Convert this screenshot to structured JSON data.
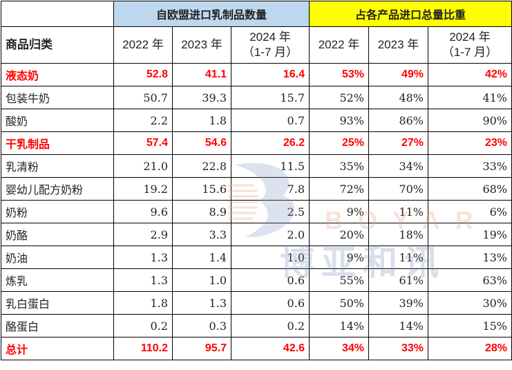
{
  "headers": {
    "group_eu": "自欧盟进口乳制品数量",
    "group_share": "占各产品进口总量比重",
    "category": "商品归类",
    "y2022": "2022 年",
    "y2023": "2023 年",
    "y2024_line1": "2024 年",
    "y2024_line2": "（1-7 月）"
  },
  "rows": [
    {
      "name": "液态奶",
      "v2022": "52.8",
      "v2023": "41.1",
      "v2024": "16.4",
      "s2022": "53%",
      "s2023": "49%",
      "s2024": "42%",
      "highlight": true
    },
    {
      "name": "包装牛奶",
      "v2022": "50.7",
      "v2023": "39.3",
      "v2024": "15.7",
      "s2022": "52%",
      "s2023": "48%",
      "s2024": "41%",
      "highlight": false
    },
    {
      "name": "酸奶",
      "v2022": "2.2",
      "v2023": "1.8",
      "v2024": "0.7",
      "s2022": "93%",
      "s2023": "86%",
      "s2024": "90%",
      "highlight": false
    },
    {
      "name": "干乳制品",
      "v2022": "57.4",
      "v2023": "54.6",
      "v2024": "26.2",
      "s2022": "25%",
      "s2023": "27%",
      "s2024": "23%",
      "highlight": true
    },
    {
      "name": "乳清粉",
      "v2022": "21.0",
      "v2023": "22.8",
      "v2024": "11.5",
      "s2022": "35%",
      "s2023": "34%",
      "s2024": "33%",
      "highlight": false
    },
    {
      "name": "婴幼儿配方奶粉",
      "v2022": "19.2",
      "v2023": "15.6",
      "v2024": "7.8",
      "s2022": "72%",
      "s2023": "70%",
      "s2024": "68%",
      "highlight": false
    },
    {
      "name": "奶粉",
      "v2022": "9.6",
      "v2023": "8.9",
      "v2024": "2.5",
      "s2022": "9%",
      "s2023": "11%",
      "s2024": "6%",
      "highlight": false
    },
    {
      "name": "奶酪",
      "v2022": "2.9",
      "v2023": "3.3",
      "v2024": "2.0",
      "s2022": "20%",
      "s2023": "18%",
      "s2024": "19%",
      "highlight": false
    },
    {
      "name": "奶油",
      "v2022": "1.3",
      "v2023": "1.4",
      "v2024": "1.0",
      "s2022": "9%",
      "s2023": "11%",
      "s2024": "13%",
      "highlight": false
    },
    {
      "name": "炼乳",
      "v2022": "1.3",
      "v2023": "1.0",
      "v2024": "0.6",
      "s2022": "55%",
      "s2023": "61%",
      "s2024": "63%",
      "highlight": false
    },
    {
      "name": "乳白蛋白",
      "v2022": "1.8",
      "v2023": "1.3",
      "v2024": "0.6",
      "s2022": "50%",
      "s2023": "39%",
      "s2024": "30%",
      "highlight": false
    },
    {
      "name": "酪蛋白",
      "v2022": "0.2",
      "v2023": "0.3",
      "v2024": "0.2",
      "s2022": "14%",
      "s2023": "14%",
      "s2024": "15%",
      "highlight": false
    },
    {
      "name": "总计",
      "v2022": "110.2",
      "v2023": "95.7",
      "v2024": "42.6",
      "s2022": "34%",
      "s2023": "33%",
      "s2024": "28%",
      "highlight": true
    }
  ],
  "watermark": {
    "en": "BOYAR",
    "cn": "博亚和讯",
    "icon": "boyar-bird-logo"
  },
  "colors": {
    "header_blue": "#bdd7ee",
    "header_yellow": "#ffff00",
    "highlight_text": "#ff0000"
  }
}
